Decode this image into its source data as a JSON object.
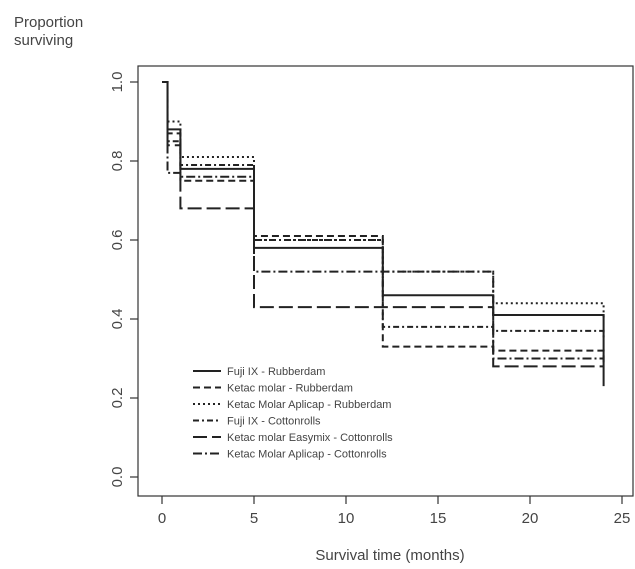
{
  "chart_data": {
    "type": "line",
    "ylabel_line1": "Proportion",
    "ylabel_line2": "surviving",
    "xlabel": "Survival time (months)",
    "xlim": [
      0,
      25
    ],
    "ylim": [
      0,
      1
    ],
    "xticks": [
      "0",
      "5",
      "10",
      "15",
      "20",
      "25"
    ],
    "yticks": [
      "0.0",
      "0.2",
      "0.4",
      "0.6",
      "0.8",
      "1.0"
    ],
    "grid": false,
    "legend_position": "bottom-left",
    "series": [
      {
        "name": "Fuji IX - Rubberdam",
        "dash": "",
        "x": [
          0,
          0.3,
          1,
          5,
          12,
          18,
          24
        ],
        "y": [
          1.0,
          0.88,
          0.78,
          0.58,
          0.46,
          0.41,
          0.23
        ]
      },
      {
        "name": "Ketac molar - Rubberdam",
        "dash": "7,4",
        "x": [
          0,
          0.3,
          1,
          5,
          12,
          18,
          24
        ],
        "y": [
          1.0,
          0.87,
          0.75,
          0.61,
          0.33,
          0.32,
          0.28
        ]
      },
      {
        "name": "Ketac Molar Aplicap - Rubberdam",
        "dash": "2,3",
        "x": [
          0,
          0.3,
          1,
          5,
          12,
          18,
          24
        ],
        "y": [
          1.0,
          0.9,
          0.81,
          0.6,
          0.52,
          0.44,
          0.4
        ]
      },
      {
        "name": "Fuji IX - Cottonrolls",
        "dash": "6,3,2,3",
        "x": [
          0,
          0.3,
          1,
          5,
          12,
          18,
          24
        ],
        "y": [
          1.0,
          0.85,
          0.79,
          0.6,
          0.38,
          0.37,
          0.35
        ]
      },
      {
        "name": "Ketac molar Easymix - Cottonrolls",
        "dash": "14,5",
        "x": [
          0,
          0.3,
          1,
          5,
          12,
          18,
          24
        ],
        "y": [
          1.0,
          0.84,
          0.68,
          0.43,
          0.43,
          0.28,
          0.28
        ]
      },
      {
        "name": "Ketac Molar Aplicap - Cottonrolls",
        "dash": "9,3,2,3",
        "x": [
          0,
          0.3,
          1,
          5,
          12,
          18,
          24
        ],
        "y": [
          1.0,
          0.77,
          0.76,
          0.52,
          0.52,
          0.3,
          0.3
        ]
      }
    ]
  }
}
